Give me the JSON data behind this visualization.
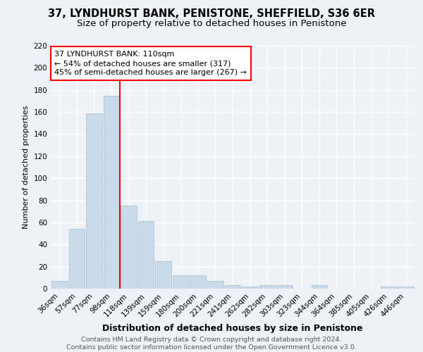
{
  "title1": "37, LYNDHURST BANK, PENISTONE, SHEFFIELD, S36 6ER",
  "title2": "Size of property relative to detached houses in Penistone",
  "xlabel": "Distribution of detached houses by size in Penistone",
  "ylabel": "Number of detached properties",
  "categories": [
    "36sqm",
    "57sqm",
    "77sqm",
    "98sqm",
    "118sqm",
    "139sqm",
    "159sqm",
    "180sqm",
    "200sqm",
    "221sqm",
    "241sqm",
    "262sqm",
    "282sqm",
    "303sqm",
    "323sqm",
    "344sqm",
    "364sqm",
    "385sqm",
    "405sqm",
    "426sqm",
    "446sqm"
  ],
  "values": [
    7,
    54,
    159,
    175,
    75,
    61,
    25,
    12,
    12,
    7,
    3,
    2,
    3,
    3,
    0,
    3,
    0,
    0,
    0,
    2,
    2
  ],
  "bar_color": "#c9daea",
  "bar_edgecolor": "#aabccc",
  "redline_index": 3.5,
  "annotation_text": "37 LYNDHURST BANK: 110sqm\n← 54% of detached houses are smaller (317)\n45% of semi-detached houses are larger (267) →",
  "annotation_box_color": "white",
  "annotation_box_edgecolor": "red",
  "redline_color": "red",
  "footer1": "Contains HM Land Registry data © Crown copyright and database right 2024.",
  "footer2": "Contains public sector information licensed under the Open Government Licence v3.0.",
  "ylim": [
    0,
    220
  ],
  "yticks": [
    0,
    20,
    40,
    60,
    80,
    100,
    120,
    140,
    160,
    180,
    200,
    220
  ],
  "background_color": "#eef2f7",
  "plot_bg_color": "#eef2f7",
  "grid_color": "white",
  "title1_fontsize": 10.5,
  "title2_fontsize": 9.5,
  "xlabel_fontsize": 9,
  "ylabel_fontsize": 8,
  "tick_fontsize": 7.5,
  "annotation_fontsize": 8,
  "footer_fontsize": 6.8
}
